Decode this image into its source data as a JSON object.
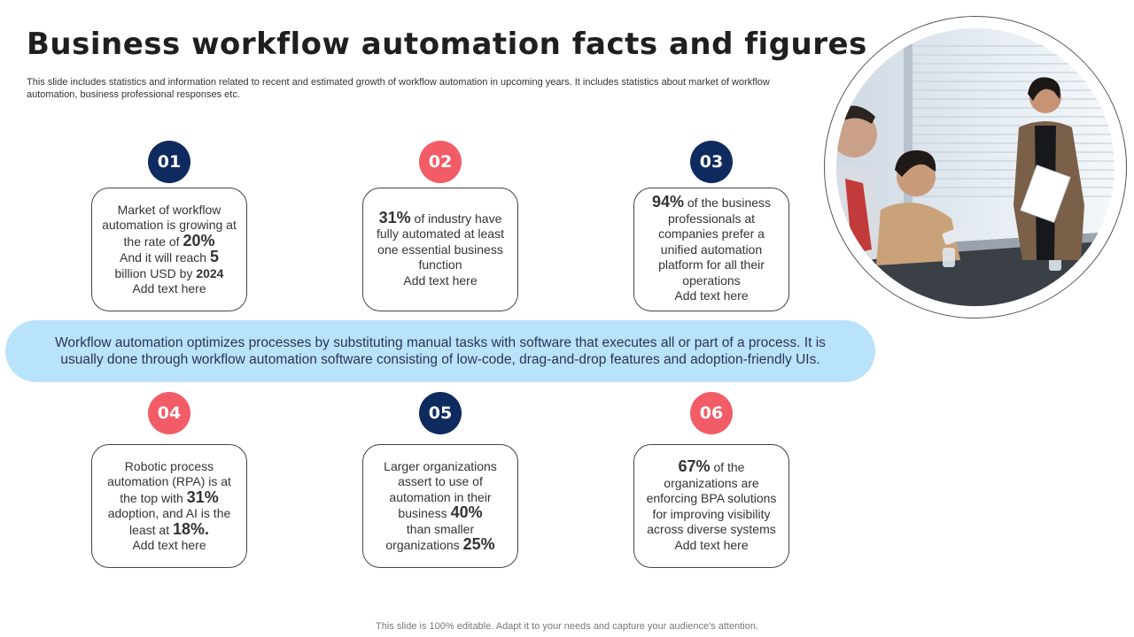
{
  "title": "Business workflow automation facts and figures",
  "subtitle": "This slide includes statistics and information related to recent and estimated growth of workflow automation in upcoming years. It includes statistics about market of workflow automation, business professional responses etc.",
  "colors": {
    "navy": "#0f2a5f",
    "coral": "#f25c66",
    "banner": "#b9e3fb"
  },
  "facts": [
    {
      "number": "01",
      "color": "navy",
      "p1": "Market of workflow automation is growing at the rate of",
      "v1": "20%",
      "p2": "And it will reach",
      "v2": "5",
      "p3": "billion USD by",
      "v3": "2024",
      "tail": "Add text here"
    },
    {
      "number": "02",
      "color": "coral",
      "v1": "31%",
      "p1": "of industry have fully automated at least one essential business function",
      "tail": "Add text here"
    },
    {
      "number": "03",
      "color": "navy",
      "v1": "94%",
      "p1": "of the business professionals at companies prefer a unified automation platform for all their operations",
      "tail": "Add text here"
    },
    {
      "number": "04",
      "color": "coral",
      "p1": "Robotic process automation (RPA) is at the top with",
      "v1": "31%",
      "p2": "adoption, and AI is the least at",
      "v2": "18%.",
      "tail": "Add text here"
    },
    {
      "number": "05",
      "color": "navy",
      "p1": "Larger organizations assert to use of automation in their business",
      "v1": "40%",
      "p2": "than smaller organizations",
      "v2": "25%"
    },
    {
      "number": "06",
      "color": "coral",
      "v1": "67%",
      "p1": "of the organizations are enforcing BPA solutions for improving visibility across diverse systems",
      "tail": "Add text here"
    }
  ],
  "banner": "Workflow automation optimizes processes by substituting manual tasks with software that executes all or part of a process. It is usually done through workflow automation software consisting of low-code, drag-and-drop features and adoption-friendly UIs.",
  "photo_icon": "business-meeting-photo",
  "footer": "This slide is 100% editable. Adapt it to your needs and capture your audience's attention."
}
